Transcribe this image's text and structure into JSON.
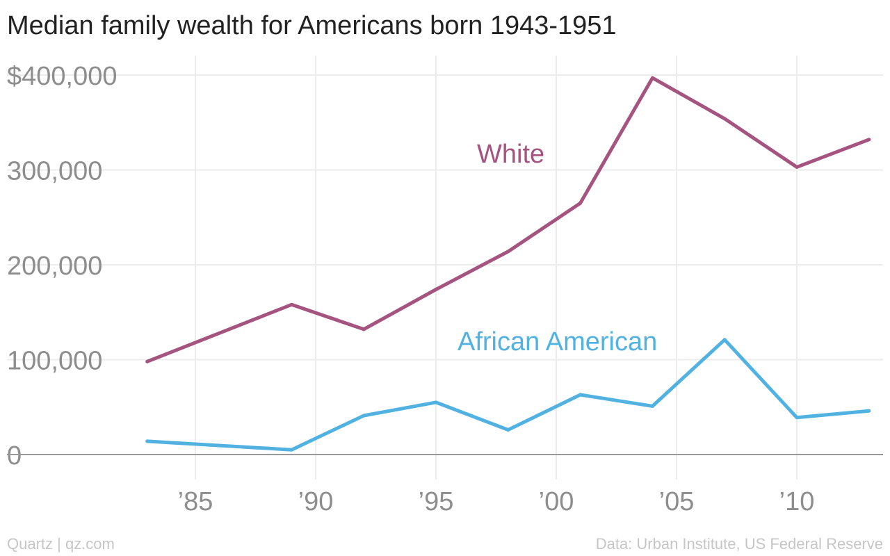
{
  "title": "Median family wealth for Americans born 1943-1951",
  "footer": {
    "left": "Quartz | qz.com",
    "right": "Data: Urban Institute, US Federal Reserve"
  },
  "chart_data": {
    "type": "line",
    "x": [
      1983,
      1989,
      1992,
      1995,
      1998,
      2001,
      2004,
      2007,
      2010,
      2013
    ],
    "series": [
      {
        "name": "White",
        "color": "#a5537f",
        "values": [
          98000,
          158000,
          132000,
          174000,
          214000,
          265000,
          397000,
          354000,
          303000,
          332000
        ]
      },
      {
        "name": "African American",
        "color": "#51b2e2",
        "values": [
          14000,
          5000,
          41000,
          55000,
          26000,
          63000,
          51000,
          121000,
          39000,
          46000
        ]
      }
    ],
    "ylim": [
      0,
      400000
    ],
    "yticks": [
      0,
      100000,
      200000,
      300000,
      400000
    ],
    "ytick_labels": [
      "0",
      "100,000",
      "200,000",
      "300,000",
      "$400,000"
    ],
    "xticks": [
      1985,
      1990,
      1995,
      2000,
      2005,
      2010
    ],
    "xtick_labels": [
      "’85",
      "’90",
      "’95",
      "’00",
      "’05",
      "’10"
    ],
    "grid": true,
    "legend": "inline labels"
  }
}
